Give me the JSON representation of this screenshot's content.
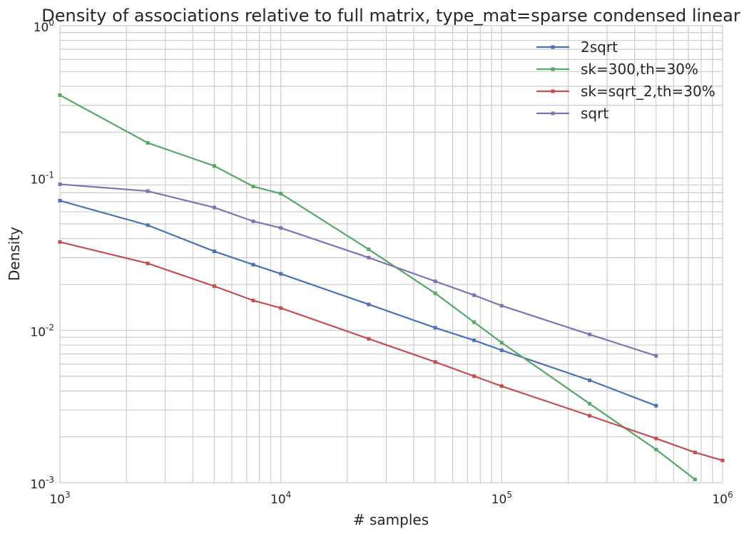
{
  "chart_data": {
    "type": "line",
    "title": "Density of associations relative to full matrix, type_mat=sparse condensed linear",
    "xlabel": "# samples",
    "ylabel": "Density",
    "xscale": "log",
    "yscale": "log",
    "xlim": [
      1000,
      1000000
    ],
    "ylim": [
      0.001,
      1
    ],
    "x_ticks": [
      {
        "value": 1000,
        "base": "10",
        "exp": "3"
      },
      {
        "value": 10000,
        "base": "10",
        "exp": "4"
      },
      {
        "value": 100000,
        "base": "10",
        "exp": "5"
      },
      {
        "value": 1000000,
        "base": "10",
        "exp": "6"
      }
    ],
    "y_ticks": [
      {
        "value": 0.001,
        "base": "10",
        "exp": "-3"
      },
      {
        "value": 0.01,
        "base": "10",
        "exp": "-2"
      },
      {
        "value": 0.1,
        "base": "10",
        "exp": "-1"
      },
      {
        "value": 1,
        "base": "10",
        "exp": "0"
      }
    ],
    "grid": true,
    "legend_position": "top-right",
    "series": [
      {
        "name": "2sqrt",
        "color": "#4c72b0",
        "x": [
          1000,
          2500,
          5000,
          7500,
          10000,
          25000,
          50000,
          75000,
          100000,
          250000,
          500000
        ],
        "y": [
          0.071,
          0.049,
          0.033,
          0.027,
          0.0235,
          0.0148,
          0.0104,
          0.0086,
          0.0074,
          0.0047,
          0.0032
        ]
      },
      {
        "name": "sk=300,th=30%",
        "color": "#55a868",
        "x": [
          1000,
          2500,
          5000,
          7500,
          10000,
          25000,
          50000,
          75000,
          100000,
          250000,
          500000,
          750000
        ],
        "y": [
          0.35,
          0.17,
          0.12,
          0.088,
          0.079,
          0.034,
          0.0175,
          0.0113,
          0.0083,
          0.0033,
          0.00165,
          0.00105
        ]
      },
      {
        "name": "sk=sqrt_2,th=30%",
        "color": "#c44e52",
        "x": [
          1000,
          2500,
          5000,
          7500,
          10000,
          25000,
          50000,
          75000,
          100000,
          250000,
          500000,
          750000,
          1000000
        ],
        "y": [
          0.038,
          0.0275,
          0.0195,
          0.0157,
          0.014,
          0.0088,
          0.0062,
          0.005,
          0.0043,
          0.00275,
          0.00195,
          0.00158,
          0.0014
        ]
      },
      {
        "name": "sqrt",
        "color": "#8172b2",
        "x": [
          1000,
          2500,
          5000,
          7500,
          10000,
          25000,
          50000,
          75000,
          100000,
          250000,
          500000
        ],
        "y": [
          0.091,
          0.082,
          0.064,
          0.052,
          0.047,
          0.03,
          0.021,
          0.017,
          0.0145,
          0.0094,
          0.0068
        ]
      }
    ]
  }
}
